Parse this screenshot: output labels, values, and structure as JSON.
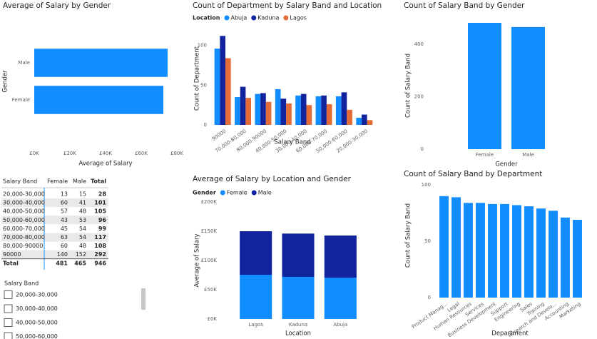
{
  "chart_data": [
    {
      "type": "barh",
      "title": "Average of Salary by Gender",
      "x_label": "Average of Salary",
      "y_label": "Gender",
      "categories": [
        "Male",
        "Female"
      ],
      "values": [
        74800,
        72400
      ],
      "color": "#118dff",
      "xlim": [
        0,
        80000
      ],
      "xticks": [
        {
          "value": 0,
          "label": "£0K"
        },
        {
          "value": 20000,
          "label": "£20K"
        },
        {
          "value": 40000,
          "label": "£40K"
        },
        {
          "value": 60000,
          "label": "£60K"
        },
        {
          "value": 80000,
          "label": "£80K"
        }
      ]
    },
    {
      "type": "grouped_bar",
      "title": "Count of Department by Salary Band and Location",
      "legend_title": "Location",
      "x_label": "Salary Band",
      "y_label": "Count of Department",
      "categories": [
        "90000",
        "70,000-80,000",
        "80,000-90000",
        "40,000-50,000",
        "30,000-40,000",
        "60,000-70,000",
        "50,000-60,000",
        "20,000-30,000"
      ],
      "series": [
        {
          "name": "Abuja",
          "color": "#118dff",
          "values": [
            96,
            35,
            39,
            45,
            37,
            36,
            36,
            9
          ]
        },
        {
          "name": "Kaduna",
          "color": "#12239e",
          "values": [
            112,
            48,
            40,
            33,
            39,
            37,
            41,
            13
          ]
        },
        {
          "name": "Lagos",
          "color": "#e66c37",
          "values": [
            84,
            34,
            29,
            27,
            25,
            26,
            19,
            6
          ]
        }
      ],
      "ylim": [
        0,
        115
      ],
      "yticks": [
        0,
        50,
        100
      ]
    },
    {
      "type": "bar",
      "title": "Count of Salary Band by Gender",
      "x_label": "Gender",
      "y_label": "Count of Salary Band",
      "categories": [
        "Female",
        "Male"
      ],
      "values": [
        481,
        465
      ],
      "color": "#118dff",
      "ylim": [
        0,
        500
      ],
      "yticks": [
        0,
        200,
        400
      ]
    },
    {
      "type": "stacked_bar",
      "title": "Average of Salary by Location and Gender",
      "legend_title": "Gender",
      "x_label": "Location",
      "y_label": "Average of Salary",
      "categories": [
        "Lagos",
        "Kaduna",
        "Abuja"
      ],
      "series": [
        {
          "name": "Female",
          "color": "#118dff",
          "values": [
            75600,
            72000,
            70700
          ]
        },
        {
          "name": "Male",
          "color": "#12239e",
          "values": [
            74400,
            74000,
            72000
          ]
        }
      ],
      "ylim": [
        0,
        200000
      ],
      "yticks": [
        {
          "value": 0,
          "label": "£0K"
        },
        {
          "value": 50000,
          "label": "£50K"
        },
        {
          "value": 100000,
          "label": "£100K"
        },
        {
          "value": 150000,
          "label": "£150K"
        },
        {
          "value": 200000,
          "label": "£200K"
        }
      ]
    },
    {
      "type": "bar",
      "title": "Count of Salary Band by Department",
      "x_label": "Department",
      "y_label": "Count of Salary Band",
      "categories": [
        "Product Manag...",
        "Legal",
        "Human Resources",
        "Services",
        "Business Development",
        "Support",
        "Engineering",
        "Sales",
        "Training",
        "Research and Develo...",
        "Accounting",
        "Marketing"
      ],
      "values": [
        90,
        89,
        84,
        84,
        83,
        83,
        82,
        81,
        79,
        77,
        71,
        69
      ],
      "color": "#118dff",
      "ylim": [
        0,
        100
      ],
      "yticks": [
        0,
        50,
        100
      ]
    }
  ],
  "table": {
    "columns": [
      "Salary Band",
      "Female",
      "Male",
      "Total"
    ],
    "rows": [
      [
        "20,000-30,000",
        13,
        15,
        28
      ],
      [
        "30,000-40,000",
        60,
        41,
        101
      ],
      [
        "40,000-50,000",
        57,
        48,
        105
      ],
      [
        "50,000-60,000",
        43,
        53,
        96
      ],
      [
        "60,000-70,000",
        45,
        54,
        99
      ],
      [
        "70,000-80,000",
        63,
        54,
        117
      ],
      [
        "80,000-90000",
        60,
        48,
        108
      ],
      [
        "90000",
        140,
        152,
        292
      ]
    ],
    "total": [
      "Total",
      481,
      465,
      946
    ]
  },
  "slicer": {
    "title": "Salary Band",
    "items": [
      "20,000-30,000",
      "30,000-40,000",
      "40,000-50,000",
      "50,000-60,000"
    ]
  }
}
